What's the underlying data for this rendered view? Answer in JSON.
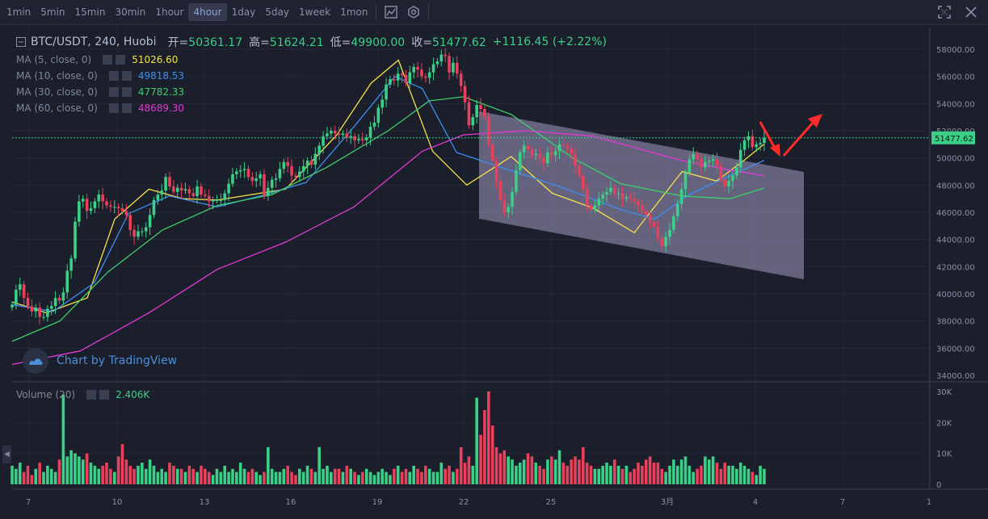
{
  "toolbar": {
    "timeframes": [
      "1min",
      "5min",
      "15min",
      "30min",
      "1hour",
      "4hour",
      "1day",
      "5day",
      "1week",
      "1mon"
    ],
    "active": "4hour",
    "icons": [
      "indicators-icon",
      "settings-icon"
    ],
    "right_icons": [
      "fullscreen-icon",
      "close-icon"
    ]
  },
  "legend": {
    "symbol": "BTC/USDT, 240, Huobi",
    "open_label": "开=",
    "open": "50361.17",
    "high_label": "高=",
    "high": "51624.21",
    "low_label": "低=",
    "low": "49900.00",
    "close_label": "收=",
    "close": "51477.62",
    "change": "+1116.45 (+2.22%)",
    "ma": [
      {
        "label": "MA (5, close, 0)",
        "value": "51026.60",
        "color": "#f5e24a"
      },
      {
        "label": "MA (10, close, 0)",
        "value": "49818.53",
        "color": "#3c8ff0"
      },
      {
        "label": "MA (30, close, 0)",
        "value": "47782.33",
        "color": "#3fcf6a"
      },
      {
        "label": "MA (60, close, 0)",
        "value": "48689.30",
        "color": "#e03ad6"
      }
    ],
    "volume_label": "Volume (20)",
    "volume_value": "2.406K"
  },
  "watermark": "Chart by TradingView",
  "side_tab": "◀",
  "colors": {
    "up": "#3ad087",
    "down": "#e8415c",
    "bg": "#1b1e2b",
    "channel": "#a39bc3",
    "arrow": "#ff2a2a"
  },
  "chart_data": {
    "type": "candlestick",
    "title": "BTC/USDT, 240, Huobi",
    "price_axis": {
      "min": 34000,
      "max": 58000,
      "ticks": [
        "58000.00",
        "56000.00",
        "54000.00",
        "52000.00",
        "50000.00",
        "48000.00",
        "46000.00",
        "44000.00",
        "42000.00",
        "40000.00",
        "38000.00",
        "36000.00",
        "34000.00"
      ]
    },
    "last_price": "51477.62",
    "volume_axis": {
      "min": 0,
      "max": 30000,
      "ticks": [
        "30K",
        "20K",
        "10K",
        "0"
      ]
    },
    "x_ticks": [
      "7",
      "10",
      "13",
      "16",
      "19",
      "22",
      "25",
      "3月",
      "4",
      "7",
      "1"
    ],
    "candles_close": [
      39200,
      40300,
      40700,
      39700,
      39100,
      38700,
      39000,
      38300,
      38300,
      38900,
      39100,
      39700,
      39500,
      40100,
      41700,
      42600,
      45300,
      46800,
      47000,
      46100,
      46300,
      46800,
      47300,
      46800,
      46500,
      46400,
      46400,
      46300,
      46100,
      45800,
      44700,
      44200,
      44600,
      44600,
      44900,
      45800,
      46900,
      47300,
      47600,
      48600,
      47900,
      47500,
      47800,
      47600,
      47700,
      47400,
      47200,
      47900,
      47300,
      47200,
      46800,
      46900,
      46900,
      46900,
      47400,
      48100,
      48800,
      49000,
      49100,
      49200,
      48600,
      48300,
      48500,
      48800,
      47200,
      47800,
      48400,
      48500,
      49200,
      49700,
      49400,
      48700,
      48600,
      49000,
      49400,
      49800,
      49500,
      50300,
      50900,
      51600,
      51800,
      52000,
      51800,
      51700,
      51800,
      51500,
      51600,
      51300,
      51400,
      51300,
      51500,
      52300,
      52600,
      53700,
      54300,
      55400,
      55800,
      55700,
      56200,
      56100,
      55500,
      56300,
      56700,
      56500,
      56000,
      55900,
      56300,
      56900,
      57100,
      57600,
      57500,
      56300,
      57000,
      56200,
      55300,
      54100,
      52400,
      53000,
      53900,
      53600,
      53000,
      51000,
      49800,
      48300,
      46900,
      46000,
      46400,
      47500,
      49100,
      50400,
      50900,
      50600,
      50200,
      50300,
      50000,
      49600,
      50400,
      50200,
      50500,
      51000,
      50900,
      50700,
      50300,
      49400,
      48700,
      47700,
      46500,
      46200,
      46500,
      47000,
      47300,
      47500,
      47800,
      47400,
      47400,
      47000,
      47100,
      47000,
      46800,
      46500,
      46100,
      45800,
      45300,
      44900,
      44100,
      43500,
      44200,
      44700,
      45700,
      46600,
      47700,
      48900,
      49900,
      50300,
      49900,
      49300,
      49700,
      49800,
      49900,
      49400,
      48400,
      47900,
      48300,
      48700,
      49300,
      50600,
      51300,
      51600,
      50800,
      51000,
      51100,
      51477
    ],
    "series": [
      {
        "name": "MA (5, close, 0)",
        "last": 51026.6,
        "shape": [
          [
            0,
            39400
          ],
          [
            10,
            38600
          ],
          [
            22,
            39700
          ],
          [
            30,
            45500
          ],
          [
            40,
            47700
          ],
          [
            50,
            47000
          ],
          [
            60,
            46900
          ],
          [
            70,
            47300
          ],
          [
            80,
            47700
          ],
          [
            95,
            51700
          ],
          [
            105,
            55500
          ],
          [
            113,
            57200
          ],
          [
            123,
            50500
          ],
          [
            133,
            48000
          ],
          [
            146,
            50100
          ],
          [
            158,
            47400
          ],
          [
            170,
            46300
          ],
          [
            182,
            44500
          ],
          [
            196,
            49000
          ],
          [
            206,
            48300
          ],
          [
            214,
            49800
          ],
          [
            220,
            51026
          ]
        ]
      },
      {
        "name": "MA (10, close, 0)",
        "last": 49818.53,
        "shape": [
          [
            0,
            39200
          ],
          [
            12,
            38700
          ],
          [
            24,
            40800
          ],
          [
            34,
            45900
          ],
          [
            46,
            47200
          ],
          [
            60,
            46400
          ],
          [
            74,
            47300
          ],
          [
            86,
            48200
          ],
          [
            100,
            52300
          ],
          [
            112,
            56000
          ],
          [
            120,
            55100
          ],
          [
            130,
            50400
          ],
          [
            142,
            49400
          ],
          [
            160,
            47900
          ],
          [
            178,
            46200
          ],
          [
            188,
            45500
          ],
          [
            198,
            47300
          ],
          [
            210,
            48700
          ],
          [
            220,
            49818
          ]
        ]
      },
      {
        "name": "MA (30, close, 0)",
        "last": 47782.33,
        "shape": [
          [
            0,
            36500
          ],
          [
            14,
            38000
          ],
          [
            28,
            41600
          ],
          [
            44,
            44700
          ],
          [
            60,
            46500
          ],
          [
            76,
            47300
          ],
          [
            92,
            49300
          ],
          [
            110,
            52000
          ],
          [
            122,
            54200
          ],
          [
            132,
            54500
          ],
          [
            146,
            53200
          ],
          [
            164,
            50000
          ],
          [
            178,
            48100
          ],
          [
            196,
            47200
          ],
          [
            210,
            47000
          ],
          [
            220,
            47782
          ]
        ]
      },
      {
        "name": "MA (60, close, 0)",
        "last": 48689.3,
        "shape": [
          [
            0,
            34800
          ],
          [
            20,
            35800
          ],
          [
            40,
            38600
          ],
          [
            60,
            41800
          ],
          [
            80,
            43800
          ],
          [
            100,
            46400
          ],
          [
            120,
            50500
          ],
          [
            132,
            51700
          ],
          [
            150,
            52000
          ],
          [
            170,
            51600
          ],
          [
            196,
            49800
          ],
          [
            210,
            49100
          ],
          [
            220,
            48689
          ]
        ]
      }
    ],
    "volume": [
      6,
      5,
      7,
      4,
      6,
      3,
      5,
      7,
      4,
      6,
      5,
      4,
      8,
      29,
      9,
      11,
      10,
      9,
      8,
      10,
      7,
      6,
      5,
      6,
      7,
      5,
      4,
      9,
      13,
      8,
      6,
      5,
      6,
      7,
      5,
      8,
      6,
      4,
      5,
      4,
      7,
      6,
      5,
      5,
      4,
      6,
      5,
      4,
      6,
      5,
      4,
      3,
      5,
      4,
      6,
      4,
      5,
      4,
      7,
      5,
      4,
      5,
      4,
      3,
      4,
      12,
      5,
      4,
      4,
      5,
      6,
      4,
      3,
      5,
      4,
      6,
      5,
      4,
      12,
      5,
      6,
      4,
      5,
      5,
      4,
      6,
      5,
      4,
      3,
      4,
      5,
      4,
      3,
      4,
      5,
      4,
      3,
      5,
      6,
      4,
      5,
      4,
      6,
      5,
      4,
      6,
      5,
      4,
      4,
      7,
      5,
      6,
      4,
      5,
      12,
      7,
      9,
      6,
      28,
      16,
      24,
      30,
      19,
      12,
      10,
      11,
      9,
      8,
      6,
      7,
      8,
      10,
      9,
      7,
      6,
      5,
      8,
      9,
      8,
      11,
      7,
      6,
      8,
      9,
      8,
      12,
      7,
      6,
      5,
      5,
      6,
      7,
      6,
      8,
      6,
      5,
      6,
      4,
      5,
      7,
      6,
      8,
      9,
      7,
      7,
      5,
      4,
      6,
      8,
      6,
      8,
      9,
      6,
      4,
      5,
      6,
      9,
      8,
      9,
      7,
      5,
      7,
      6,
      6,
      5,
      7,
      6,
      5,
      4,
      3,
      6,
      5,
      4,
      7,
      8,
      6,
      4,
      5,
      3,
      3
    ]
  },
  "annotations": [
    {
      "name": "descending-channel",
      "type": "parallelogram"
    },
    {
      "name": "red-arrow-down",
      "type": "arrow"
    },
    {
      "name": "red-arrow-up",
      "type": "arrow"
    }
  ]
}
